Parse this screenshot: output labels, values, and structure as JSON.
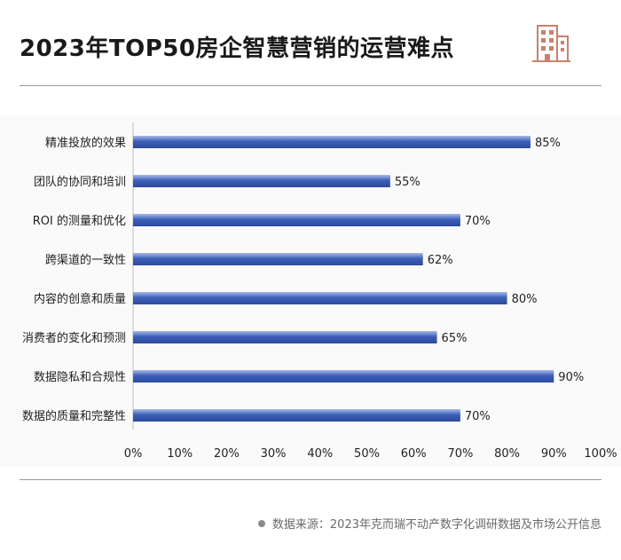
{
  "title": "2023年TOP50房企智慧营销的运营难点",
  "source": "数据来源：2023年克而瑞不动产数字化调研数据及市场公开信息",
  "colors": {
    "bar": "#3e5fb8",
    "bar_light": "#a8baea",
    "icon": "#c8826a"
  },
  "icon": "building-icon",
  "chart_data": {
    "type": "bar",
    "orientation": "horizontal",
    "categories": [
      "精准投放的效果",
      "团队的协同和培训",
      "ROI 的测量和优化",
      "跨渠道的一致性",
      "内容的创意和质量",
      "消费者的变化和预测",
      "数据隐私和合规性",
      "数据的质量和完整性"
    ],
    "values": [
      85,
      55,
      70,
      62,
      80,
      65,
      90,
      70
    ],
    "value_labels": [
      "85%",
      "55%",
      "70%",
      "62%",
      "80%",
      "65%",
      "90%",
      "70%"
    ],
    "xticks": [
      "0%",
      "10%",
      "20%",
      "30%",
      "40%",
      "50%",
      "60%",
      "70%",
      "80%",
      "90%",
      "100%"
    ],
    "xlim": [
      0,
      100
    ],
    "grid": false,
    "title": "",
    "xlabel": "",
    "ylabel": ""
  }
}
